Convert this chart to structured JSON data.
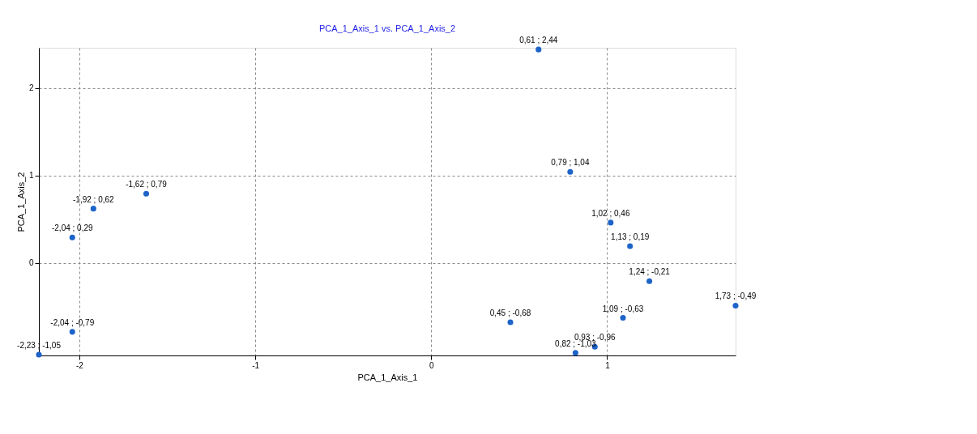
{
  "chart_data": {
    "type": "scatter",
    "title": "PCA_1_Axis_1 vs. PCA_1_Axis_2",
    "xlabel": "PCA_1_Axis_1",
    "ylabel": "PCA_1_Axis_2",
    "x": [
      0.61,
      0.79,
      -1.62,
      -1.92,
      1.02,
      -2.04,
      1.13,
      1.24,
      1.73,
      0.45,
      1.09,
      -2.04,
      0.93,
      0.82,
      -2.23
    ],
    "series": [
      {
        "color": "#1e64c8",
        "values": [
          2.44,
          1.04,
          0.79,
          0.62,
          0.46,
          0.29,
          0.19,
          -0.21,
          -0.49,
          -0.68,
          -0.63,
          -0.79,
          -0.96,
          -1.03,
          -1.05
        ]
      }
    ],
    "value_labels": [
      "0,61 ; 2,44",
      "0,79 ; 1,04",
      "-1,62 ; 0,79",
      "-1,92 ; 0,62",
      "1,02 ; 0,46",
      "-2,04 ; 0,29",
      "1,13 ; 0,19",
      "1,24 ; -0,21",
      "1,73 ; -0,49",
      "0,45 ; -0,68",
      "1,09 ; -0,63",
      "-2,04 ; -0,79",
      "0,93 ; -0,96",
      "0,82 ; -1,03",
      "-2,23 ; -1,05"
    ],
    "xlim": [
      -2.23,
      1.73
    ],
    "ylim": [
      -1.06,
      2.46
    ],
    "xticks": [
      -2,
      -1,
      0,
      1
    ],
    "yticks": [
      0,
      1,
      2
    ],
    "grid": true,
    "marker": "circle"
  }
}
